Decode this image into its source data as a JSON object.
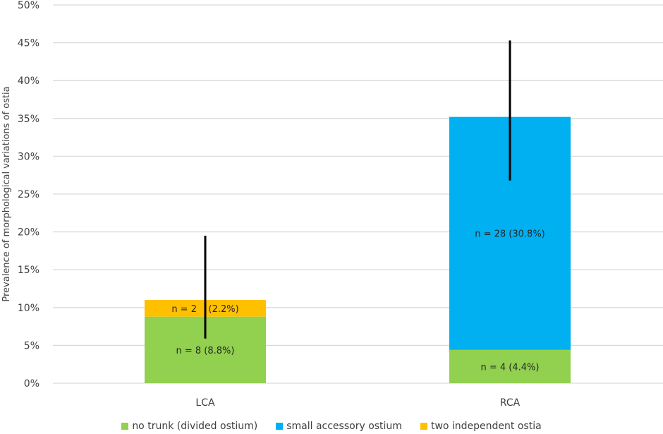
{
  "chart_data": {
    "type": "bar",
    "stacked": true,
    "title": "",
    "xlabel": "",
    "ylabel": "Prevalence of morphological variations of ostia",
    "ylim": [
      0,
      50
    ],
    "yticks": [
      0,
      5,
      10,
      15,
      20,
      25,
      30,
      35,
      40,
      45,
      50
    ],
    "ytick_labels": [
      "0%",
      "5%",
      "10%",
      "15%",
      "20%",
      "25%",
      "30%",
      "35%",
      "40%",
      "45%",
      "50%"
    ],
    "grid": true,
    "categories": [
      "LCA",
      "RCA"
    ],
    "series": [
      {
        "name": "no trunk (divided ostium)",
        "color": "#92D050",
        "values": [
          8.8,
          4.4
        ],
        "labels": [
          "n = 8 (8.8%)",
          "n = 4 (4.4%)"
        ]
      },
      {
        "name": "small accessory ostium",
        "color": "#00B0F0",
        "values": [
          0,
          30.8
        ],
        "labels": [
          "",
          "n = 28 (30.8%)"
        ]
      },
      {
        "name": "two independent ostia",
        "color": "#FFC000",
        "values": [
          2.2,
          0
        ],
        "labels": [
          "n = 2    (2.2%)",
          ""
        ]
      }
    ],
    "error_bars": [
      {
        "category": "LCA",
        "low": 5.9,
        "high": 19.5
      },
      {
        "category": "RCA",
        "low": 26.8,
        "high": 45.3
      }
    ],
    "legend_position": "bottom"
  }
}
